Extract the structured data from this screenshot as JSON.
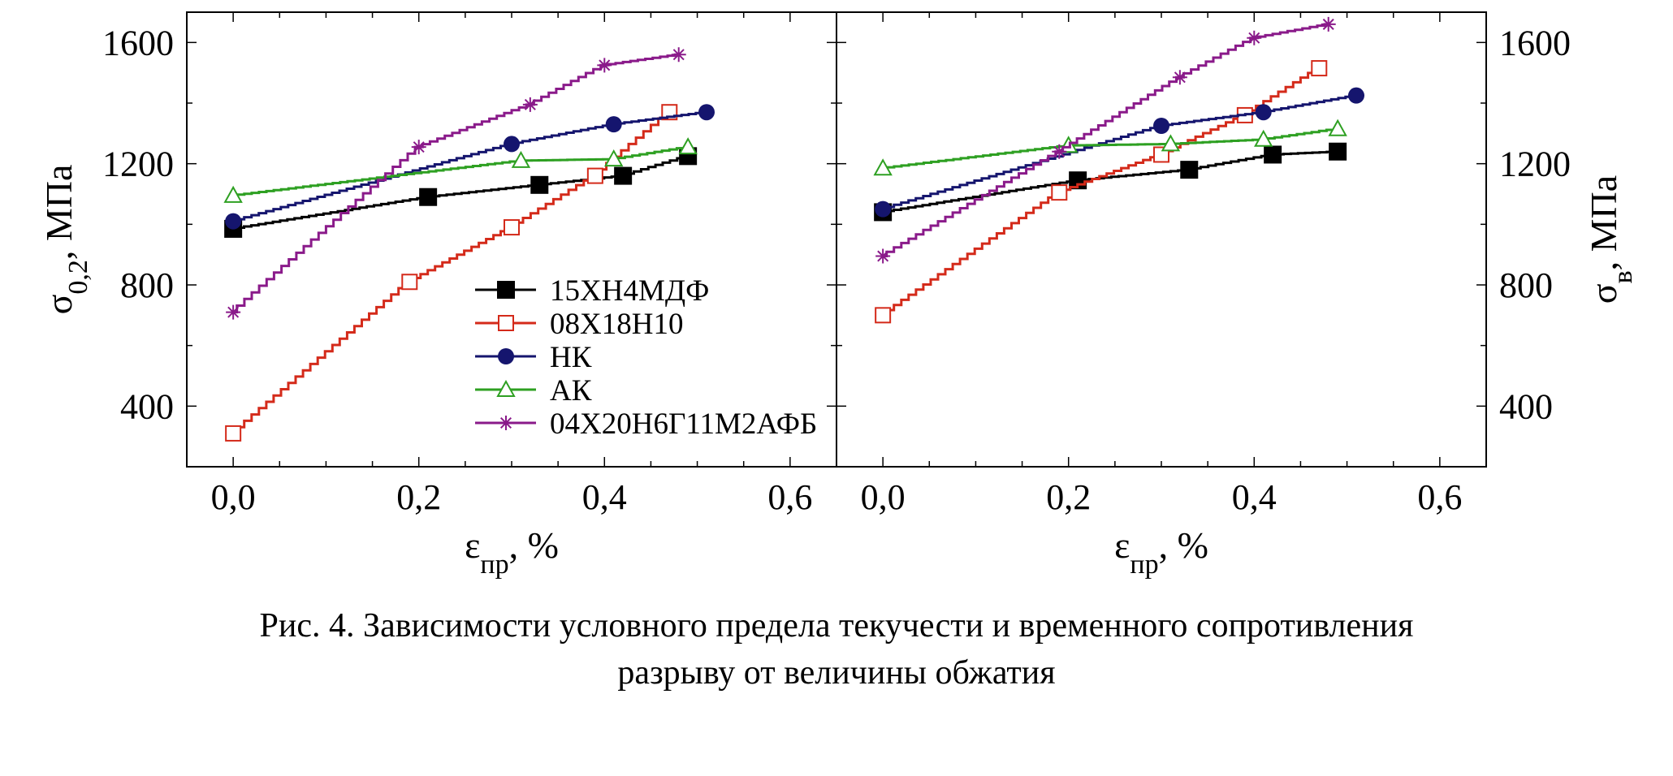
{
  "caption": {
    "line1": "Рис. 4. Зависимости условного предела текучести и временного сопротивления",
    "line2": "разрыву от величины обжатия"
  },
  "chart_data": [
    {
      "type": "line",
      "ylabel": "σ0,2, МПа",
      "ylabel_main": "σ",
      "ylabel_sub": "0,2",
      "ylabel_rest": ", МПа",
      "xlabel": "εпр, %",
      "xlabel_main": "ε",
      "xlabel_sub": "пр",
      "xlabel_rest": ", %",
      "xlim": [
        -0.05,
        0.65
      ],
      "ylim": [
        200,
        1700
      ],
      "xticks": [
        0.0,
        0.2,
        0.4,
        0.6
      ],
      "xtick_labels": [
        "0,0",
        "0,2",
        "0,4",
        "0,6"
      ],
      "yticks": [
        400,
        800,
        1200,
        1600
      ],
      "ytick_labels": [
        "400",
        "800",
        "1200",
        "1600"
      ],
      "y_axis_side": "left",
      "grid": false,
      "legend_position": "center",
      "series": [
        {
          "name": "15ХН4МДФ",
          "color": "#000000",
          "marker": "square-filled",
          "x": [
            0.0,
            0.21,
            0.33,
            0.42,
            0.49
          ],
          "y": [
            985,
            1090,
            1130,
            1160,
            1225
          ]
        },
        {
          "name": "08Х18Н10",
          "color": "#d42a1a",
          "marker": "square-open",
          "x": [
            0.0,
            0.19,
            0.3,
            0.39,
            0.47
          ],
          "y": [
            310,
            810,
            990,
            1160,
            1370
          ]
        },
        {
          "name": "НК",
          "color": "#15156e",
          "marker": "circle-filled",
          "x": [
            0.0,
            0.3,
            0.41,
            0.51
          ],
          "y": [
            1010,
            1265,
            1330,
            1370
          ]
        },
        {
          "name": "АК",
          "color": "#2ea022",
          "marker": "triangle-open",
          "x": [
            0.0,
            0.31,
            0.41,
            0.49
          ],
          "y": [
            1095,
            1210,
            1215,
            1255
          ]
        },
        {
          "name": "04Х20Н6Г11М2АФБ",
          "color": "#8a1a8a",
          "marker": "asterisk",
          "x": [
            0.0,
            0.2,
            0.32,
            0.4,
            0.48
          ],
          "y": [
            710,
            1255,
            1395,
            1525,
            1560
          ]
        }
      ]
    },
    {
      "type": "line",
      "ylabel": "σв, МПа",
      "ylabel_main": "σ",
      "ylabel_sub": "в",
      "ylabel_rest": ", МПа",
      "xlabel": "εпр, %",
      "xlabel_main": "ε",
      "xlabel_sub": "пр",
      "xlabel_rest": ", %",
      "xlim": [
        -0.05,
        0.65
      ],
      "ylim": [
        200,
        1700
      ],
      "xticks": [
        0.0,
        0.2,
        0.4,
        0.6
      ],
      "xtick_labels": [
        "0,0",
        "0,2",
        "0,4",
        "0,6"
      ],
      "yticks": [
        400,
        800,
        1200,
        1600
      ],
      "ytick_labels": [
        "400",
        "800",
        "1200",
        "1600"
      ],
      "y_axis_side": "right",
      "grid": false,
      "series": [
        {
          "name": "15ХН4МДФ",
          "color": "#000000",
          "marker": "square-filled",
          "x": [
            0.0,
            0.21,
            0.33,
            0.42,
            0.49
          ],
          "y": [
            1040,
            1145,
            1180,
            1230,
            1240
          ]
        },
        {
          "name": "08Х18Н10",
          "color": "#d42a1a",
          "marker": "square-open",
          "x": [
            0.0,
            0.19,
            0.3,
            0.39,
            0.47
          ],
          "y": [
            700,
            1105,
            1230,
            1360,
            1515
          ]
        },
        {
          "name": "НК",
          "color": "#15156e",
          "marker": "circle-filled",
          "x": [
            0.0,
            0.3,
            0.41,
            0.51
          ],
          "y": [
            1050,
            1325,
            1370,
            1425
          ]
        },
        {
          "name": "АК",
          "color": "#2ea022",
          "marker": "triangle-open",
          "x": [
            0.0,
            0.2,
            0.31,
            0.41,
            0.49
          ],
          "y": [
            1185,
            1260,
            1265,
            1280,
            1315
          ]
        },
        {
          "name": "04Х20Н6Г11М2АФБ",
          "color": "#8a1a8a",
          "marker": "asterisk",
          "x": [
            0.0,
            0.19,
            0.32,
            0.4,
            0.48
          ],
          "y": [
            895,
            1240,
            1485,
            1615,
            1660
          ]
        }
      ]
    }
  ]
}
